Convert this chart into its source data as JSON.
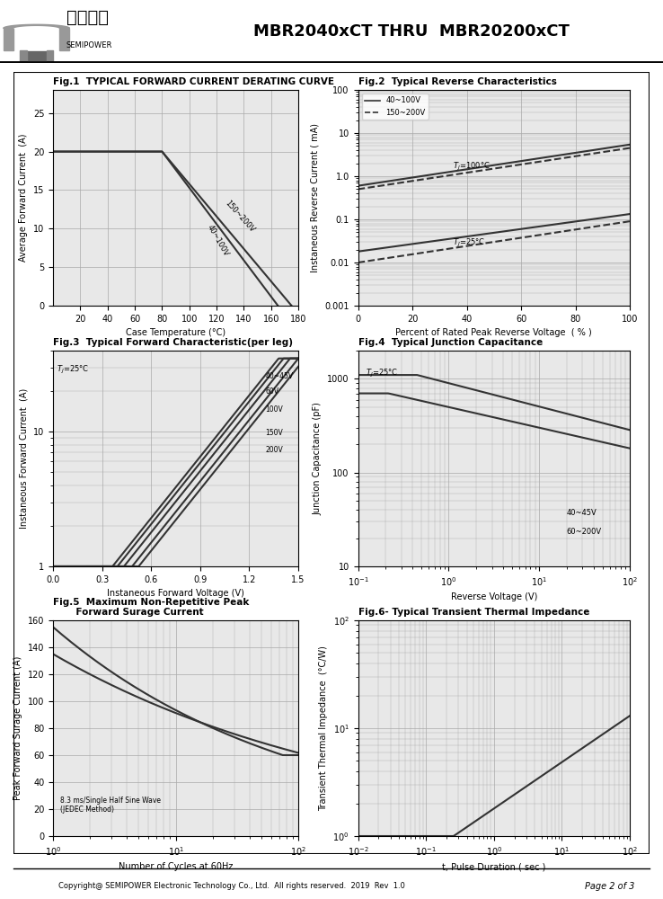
{
  "title": "MBR2040xCT THRU  MBR20200xCT",
  "company": "芯派科技",
  "company_sub": "SEMIPOWER",
  "footer": "Copyright@ SEMIPOWER Electronic Technology Co., Ltd.  All rights reserved.  2019  Rev  1.0",
  "page": "Page 2 of 3",
  "fig1_title": "Fig.1  TYPICAL FORWARD CURRENT DERATING CURVE",
  "fig1_xlabel": "Case Temperature (°C)",
  "fig1_ylabel": "Average Forward Current  (A)",
  "fig1_xlim": [
    0,
    180
  ],
  "fig1_ylim": [
    0.0,
    28
  ],
  "fig1_xticks": [
    20,
    40,
    60,
    80,
    100,
    120,
    140,
    160,
    180
  ],
  "fig1_yticks": [
    0.0,
    5,
    10,
    15,
    20,
    25
  ],
  "fig2_title": "Fig.2  Typical Reverse Characteristics",
  "fig2_xlabel": "Percent of Rated Peak Reverse Voltage  ( % )",
  "fig2_ylabel": "Instaneous Reverse Current ( mA)",
  "fig2_xlim": [
    0,
    100
  ],
  "fig2_ylim_log": [
    0.001,
    100
  ],
  "fig2_xticks": [
    0,
    20,
    40,
    60,
    80,
    100
  ],
  "fig3_title": "Fig.3  Typical Forward Characteristic(per leg)",
  "fig3_xlabel": "Instaneous Forward Voltage (V)",
  "fig3_ylabel": "Instaneous Forward Current  (A)",
  "fig3_xlim": [
    0,
    1.5
  ],
  "fig3_ylim_log": [
    1.0,
    40
  ],
  "fig3_xticks": [
    0,
    0.3,
    0.6,
    0.9,
    1.2,
    1.5
  ],
  "fig4_title": "Fig.4  Typical Junction Capacitance",
  "fig4_xlabel": "Reverse Voltage (V)",
  "fig4_ylabel": "Junction Capacitance (pF)",
  "fig4_xlim_log": [
    0.1,
    100
  ],
  "fig4_ylim_log": [
    10,
    2000
  ],
  "fig5_title": "Fig.5  Maximum Non-Repetitive Peak\n       Forward Surage Current",
  "fig5_xlabel": "Number of Cycles at 60Hz",
  "fig5_ylabel": "Peak Forward Surage Current (A)",
  "fig5_xlim_log": [
    1,
    100
  ],
  "fig5_ylim": [
    0,
    160
  ],
  "fig5_yticks": [
    0,
    20,
    40,
    60,
    80,
    100,
    120,
    140,
    160
  ],
  "fig6_title": "Fig.6- Typical Transient Thermal Impedance",
  "fig6_xlabel": "t, Pulse Duration ( sec )",
  "fig6_ylabel": "Transient Thermal Impedance  (°C/W)",
  "fig6_xlim_log": [
    0.01,
    100
  ],
  "fig6_ylim_log": [
    1,
    100
  ],
  "grid_color": "#aaaaaa",
  "line_color": "#333333",
  "background": "#ffffff"
}
